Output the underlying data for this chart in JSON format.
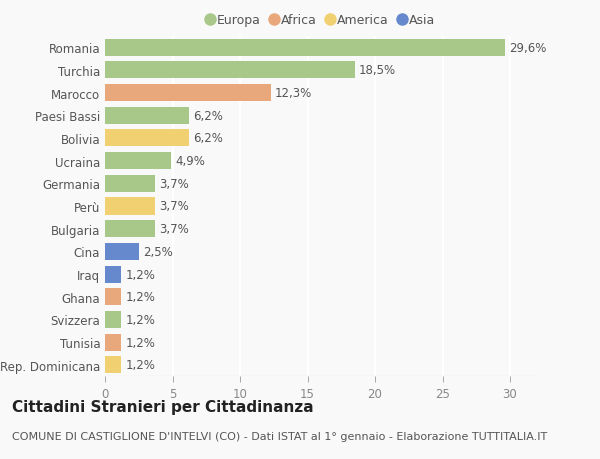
{
  "countries": [
    "Romania",
    "Turchia",
    "Marocco",
    "Paesi Bassi",
    "Bolivia",
    "Ucraina",
    "Germania",
    "Perù",
    "Bulgaria",
    "Cina",
    "Iraq",
    "Ghana",
    "Svizzera",
    "Tunisia",
    "Rep. Dominicana"
  ],
  "values": [
    29.6,
    18.5,
    12.3,
    6.2,
    6.2,
    4.9,
    3.7,
    3.7,
    3.7,
    2.5,
    1.2,
    1.2,
    1.2,
    1.2,
    1.2
  ],
  "labels": [
    "29,6%",
    "18,5%",
    "12,3%",
    "6,2%",
    "6,2%",
    "4,9%",
    "3,7%",
    "3,7%",
    "3,7%",
    "2,5%",
    "1,2%",
    "1,2%",
    "1,2%",
    "1,2%",
    "1,2%"
  ],
  "continents": [
    "Europa",
    "Europa",
    "Africa",
    "Europa",
    "America",
    "Europa",
    "Europa",
    "America",
    "Europa",
    "Asia",
    "Asia",
    "Africa",
    "Europa",
    "Africa",
    "America"
  ],
  "continent_colors": {
    "Europa": "#a8c88a",
    "Africa": "#e8a87c",
    "America": "#f0d070",
    "Asia": "#6688cc"
  },
  "legend_order": [
    "Europa",
    "Africa",
    "America",
    "Asia"
  ],
  "title": "Cittadini Stranieri per Cittadinanza",
  "subtitle": "COMUNE DI CASTIGLIONE D'INTELVI (CO) - Dati ISTAT al 1° gennaio - Elaborazione TUTTITALIA.IT",
  "xlim": [
    0,
    32
  ],
  "xticks": [
    0,
    5,
    10,
    15,
    20,
    25,
    30
  ],
  "background_color": "#f9f9f9",
  "grid_color": "#ffffff",
  "bar_height": 0.75,
  "label_fontsize": 8.5,
  "tick_fontsize": 8.5,
  "title_fontsize": 11,
  "subtitle_fontsize": 8
}
